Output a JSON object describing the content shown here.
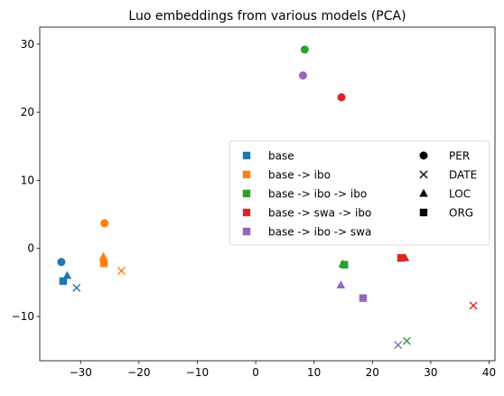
{
  "chart_data": {
    "type": "scatter",
    "title": "Luo embeddings from various models (PCA)",
    "xlabel": "",
    "ylabel": "",
    "xlim": [
      -37,
      41
    ],
    "ylim": [
      -16.5,
      32.5
    ],
    "xticks": [
      -30,
      -20,
      -10,
      0,
      10,
      20,
      30,
      40
    ],
    "xtick_labels": [
      "−30",
      "−20",
      "−10",
      "0",
      "10",
      "20",
      "30",
      "40"
    ],
    "yticks": [
      -10,
      0,
      10,
      20,
      30
    ],
    "ytick_labels": [
      "−10",
      "0",
      "10",
      "20",
      "30"
    ],
    "grid": false,
    "legend_position": "center-right",
    "colors": {
      "base": "#1f77b4",
      "base -> ibo": "#ff7f0e",
      "base -> ibo -> ibo": "#2ca02c",
      "base -> swa -> ibo": "#d62728",
      "base -> ibo -> swa": "#9467bd"
    },
    "model_legend": [
      "base",
      "base -> ibo",
      "base -> ibo -> ibo",
      "base -> swa -> ibo",
      "base -> ibo -> swa"
    ],
    "entity_legend": [
      {
        "label": "PER",
        "marker": "circle"
      },
      {
        "label": "DATE",
        "marker": "x"
      },
      {
        "label": "LOC",
        "marker": "triangle"
      },
      {
        "label": "ORG",
        "marker": "square"
      }
    ],
    "points": [
      {
        "model": "base",
        "entity": "PER",
        "x": -33.3,
        "y": -2.0
      },
      {
        "model": "base",
        "entity": "DATE",
        "x": -30.7,
        "y": -5.8
      },
      {
        "model": "base",
        "entity": "LOC",
        "x": -32.3,
        "y": -4.0
      },
      {
        "model": "base",
        "entity": "ORG",
        "x": -33.0,
        "y": -4.8
      },
      {
        "model": "base -> ibo",
        "entity": "PER",
        "x": -25.9,
        "y": 3.7
      },
      {
        "model": "base -> ibo",
        "entity": "DATE",
        "x": -23.0,
        "y": -3.3
      },
      {
        "model": "base -> ibo",
        "entity": "LOC",
        "x": -26.1,
        "y": -1.2
      },
      {
        "model": "base -> ibo",
        "entity": "ORG",
        "x": -26.0,
        "y": -2.2
      },
      {
        "model": "base -> ibo -> ibo",
        "entity": "PER",
        "x": 8.4,
        "y": 29.2
      },
      {
        "model": "base -> ibo -> ibo",
        "entity": "DATE",
        "x": 25.9,
        "y": -13.6
      },
      {
        "model": "base -> ibo -> ibo",
        "entity": "LOC",
        "x": 14.9,
        "y": -2.3
      },
      {
        "model": "base -> ibo -> ibo",
        "entity": "ORG",
        "x": 15.2,
        "y": -2.4
      },
      {
        "model": "base -> swa -> ibo",
        "entity": "PER",
        "x": 14.7,
        "y": 22.2
      },
      {
        "model": "base -> swa -> ibo",
        "entity": "DATE",
        "x": 37.3,
        "y": -8.4
      },
      {
        "model": "base -> swa -> ibo",
        "entity": "LOC",
        "x": 25.6,
        "y": -1.4
      },
      {
        "model": "base -> swa -> ibo",
        "entity": "ORG",
        "x": 24.9,
        "y": -1.4
      },
      {
        "model": "base -> ibo -> swa",
        "entity": "PER",
        "x": 8.1,
        "y": 25.4
      },
      {
        "model": "base -> ibo -> swa",
        "entity": "DATE",
        "x": 24.4,
        "y": -14.2
      },
      {
        "model": "base -> ibo -> swa",
        "entity": "LOC",
        "x": 14.6,
        "y": -5.4
      },
      {
        "model": "base -> ibo -> swa",
        "entity": "ORG",
        "x": 18.4,
        "y": -7.3
      }
    ]
  }
}
